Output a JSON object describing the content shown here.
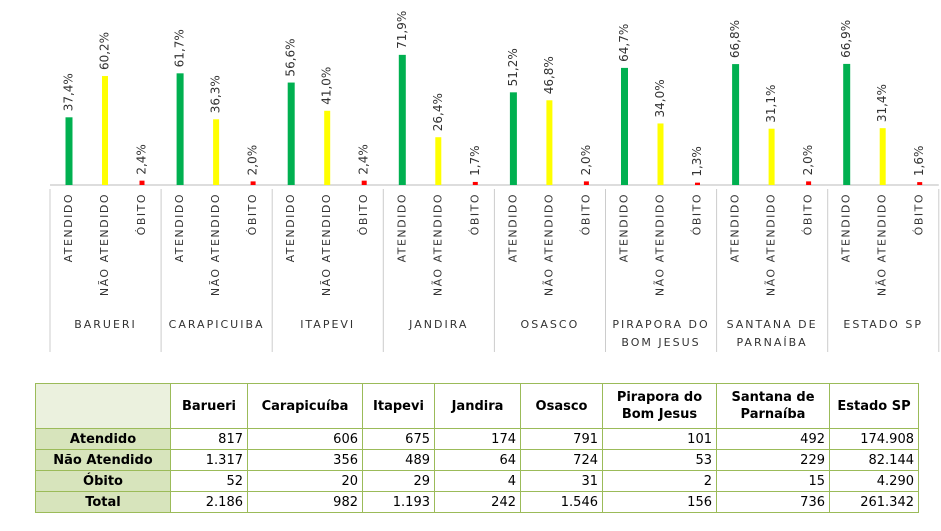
{
  "chart_data": {
    "type": "bar",
    "categories": [
      "BARUERI",
      "CARAPICUIBA",
      "ITAPEVI",
      "JANDIRA",
      "OSASCO",
      "PIRAPORA DO BOM JESUS",
      "SANTANA DE PARNAÍBA",
      "ESTADO SP"
    ],
    "series": [
      {
        "name": "ATENDIDO",
        "color": "#00b050",
        "values": [
          37.4,
          61.7,
          56.6,
          71.9,
          51.2,
          64.7,
          66.8,
          66.9
        ],
        "value_labels": [
          "37,4%",
          "61,7%",
          "56,6%",
          "71,9%",
          "51,2%",
          "64,7%",
          "66,8%",
          "66,9%"
        ]
      },
      {
        "name": "NÃO ATENDIDO",
        "color": "#ffff00",
        "values": [
          60.2,
          36.3,
          41.0,
          26.4,
          46.8,
          34.0,
          31.1,
          31.4
        ],
        "value_labels": [
          "60,2%",
          "36,3%",
          "41,0%",
          "26,4%",
          "46,8%",
          "34,0%",
          "31,1%",
          "31,4%"
        ]
      },
      {
        "name": "ÓBITO",
        "color": "#ff0000",
        "values": [
          2.4,
          2.0,
          2.4,
          1.7,
          2.0,
          1.3,
          2.0,
          1.6
        ],
        "value_labels": [
          "2,4%",
          "2,0%",
          "2,4%",
          "1,7%",
          "2,0%",
          "1,3%",
          "2,0%",
          "1,6%"
        ]
      }
    ]
  },
  "table": {
    "header": [
      "Barueri",
      "Carapicuíba",
      "Itapevi",
      "Jandira",
      "Osasco",
      "Pirapora do Bom Jesus",
      "Santana de Parnaíba",
      "Estado SP"
    ],
    "rows": [
      [
        "Atendido",
        "817",
        "606",
        "675",
        "174",
        "791",
        "101",
        "492",
        "174.908"
      ],
      [
        "Não Atendido",
        "1.317",
        "356",
        "489",
        "64",
        "724",
        "53",
        "229",
        "82.144"
      ],
      [
        "Óbito",
        "52",
        "20",
        "29",
        "4",
        "31",
        "2",
        "15",
        "4.290"
      ],
      [
        "Total",
        "2.186",
        "982",
        "1.193",
        "242",
        "1.546",
        "156",
        "736",
        "261.342"
      ]
    ]
  }
}
